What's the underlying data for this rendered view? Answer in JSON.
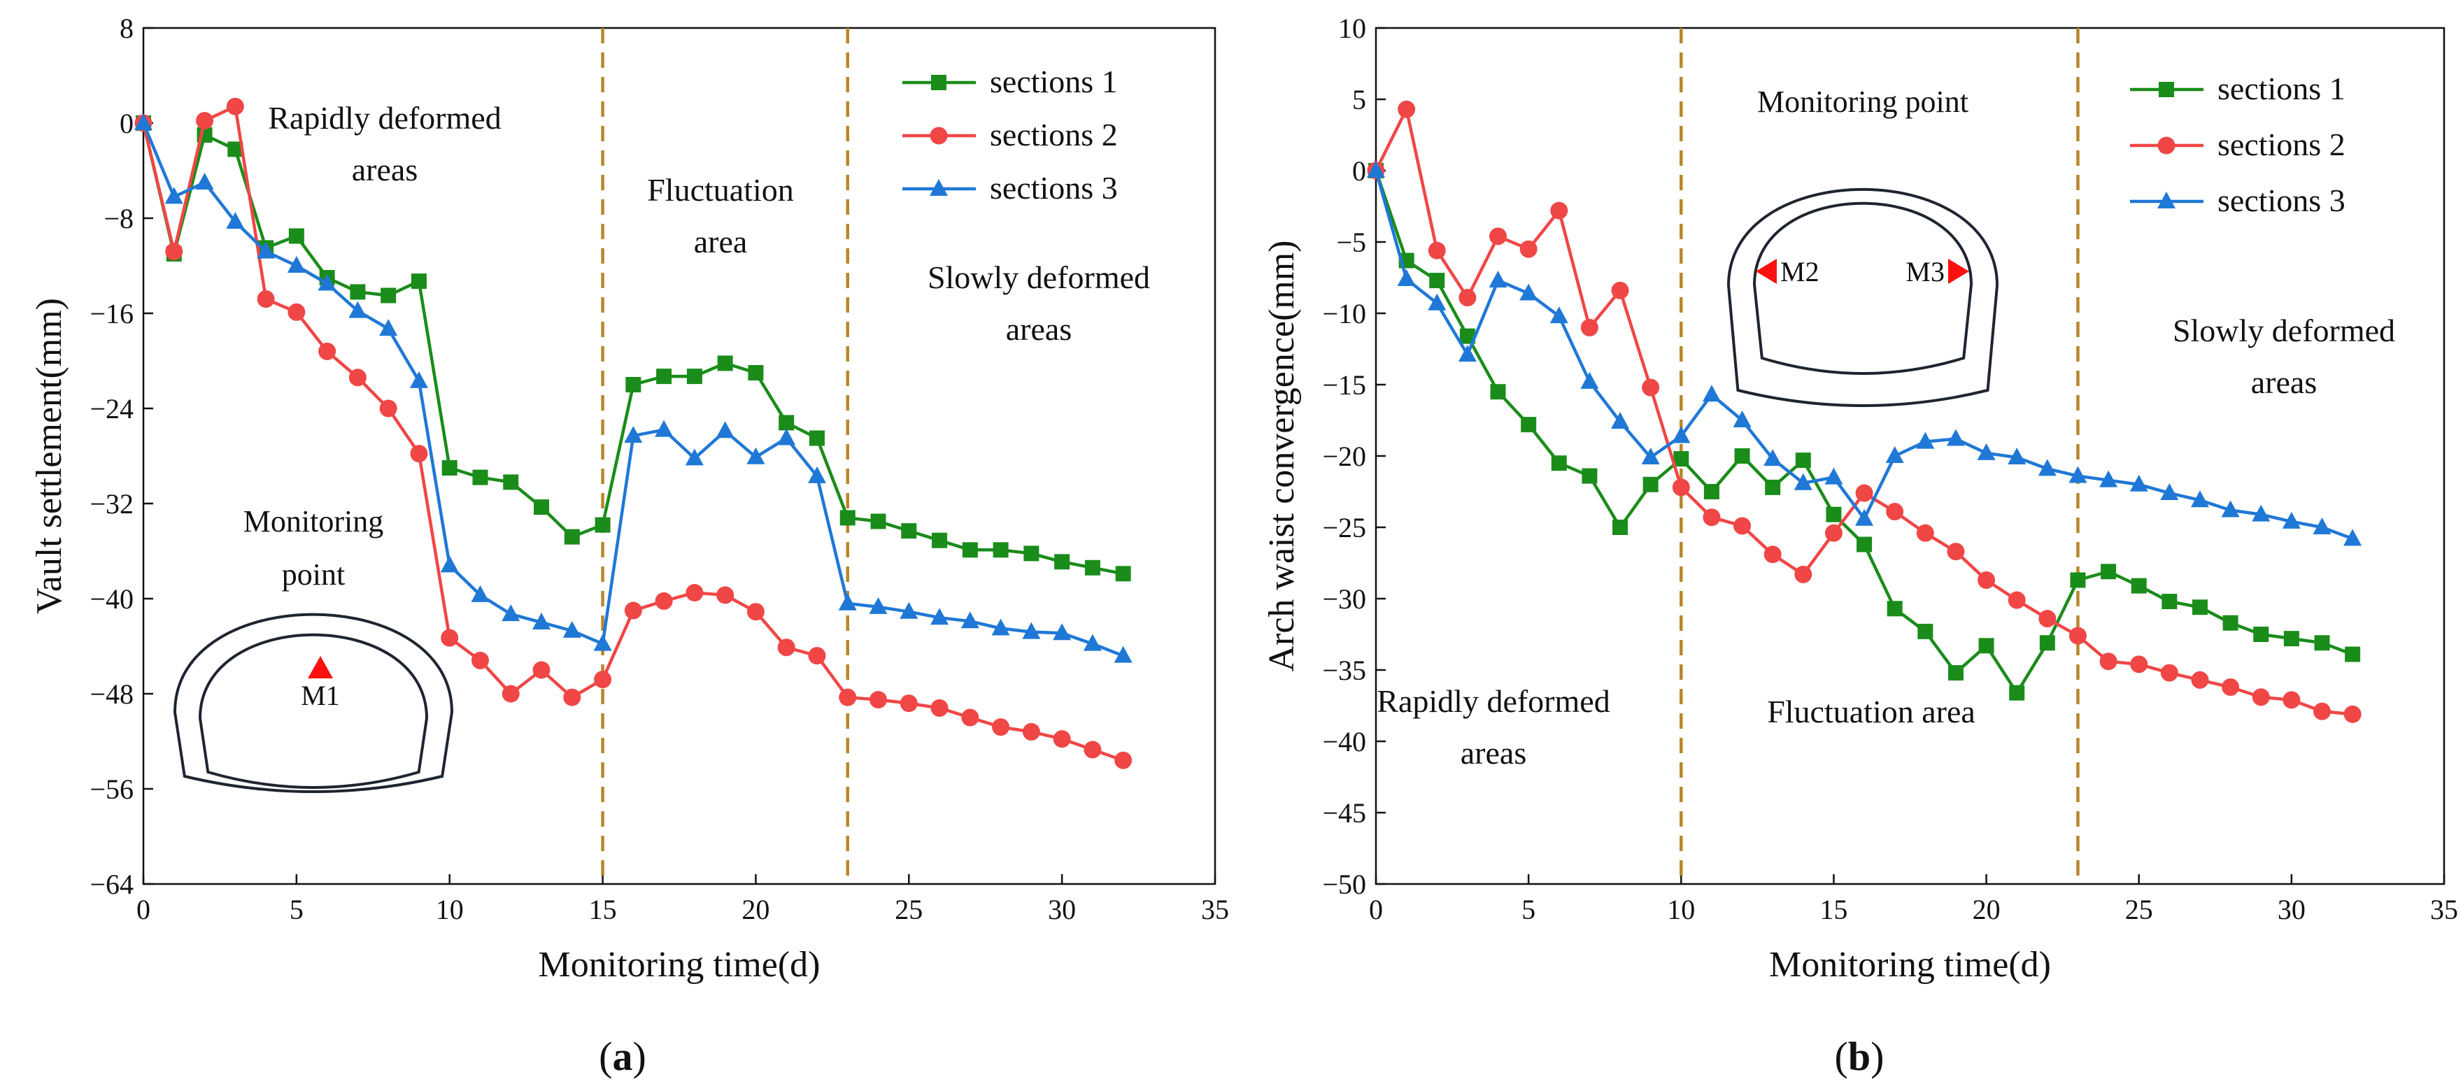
{
  "series_styles": [
    {
      "color": "#1a8c1a",
      "marker": "square"
    },
    {
      "color": "#f04646",
      "marker": "circle"
    },
    {
      "color": "#1f78d6",
      "marker": "triangle"
    }
  ],
  "chart_data": [
    {
      "type": "line",
      "panel_label": {
        "open": "(",
        "letter": "a",
        "close": ")"
      },
      "xlabel": "Monitoring time(d)",
      "ylabel": "Vault settlement(mm)",
      "xlim": [
        0,
        35
      ],
      "ylim": [
        -64,
        8
      ],
      "xticks": [
        0,
        5,
        10,
        15,
        20,
        25,
        30,
        35
      ],
      "yticks": [
        8,
        0,
        -8,
        -16,
        -24,
        -32,
        -40,
        -48,
        -56,
        -64
      ],
      "grid": false,
      "legend_position": "top-right",
      "dividers": [
        15,
        23
      ],
      "x": [
        0,
        1,
        2,
        3,
        4,
        5,
        6,
        7,
        8,
        9,
        10,
        11,
        12,
        13,
        14,
        15,
        16,
        17,
        18,
        19,
        20,
        21,
        22,
        23,
        24,
        25,
        26,
        27,
        28,
        29,
        30,
        31,
        32
      ],
      "series": [
        {
          "name": "sections 1",
          "values": [
            0,
            -11,
            -1,
            -2.2,
            -10.5,
            -9.5,
            -13,
            -14.2,
            -14.5,
            -13.3,
            -29,
            -29.8,
            -30.2,
            -32.3,
            -34.8,
            -33.8,
            -22,
            -21.3,
            -21.3,
            -20.2,
            -21,
            -25.2,
            -26.5,
            -33.2,
            -33.5,
            -34.3,
            -35.1,
            -35.9,
            -35.9,
            -36.2,
            -36.9,
            -37.4,
            -37.9
          ]
        },
        {
          "name": "sections 2",
          "values": [
            0,
            -10.8,
            0.2,
            1.4,
            -14.8,
            -15.9,
            -19.2,
            -21.4,
            -24,
            -27.8,
            -43.3,
            -45.2,
            -48,
            -46,
            -48.3,
            -46.8,
            -41,
            -40.2,
            -39.5,
            -39.7,
            -41.1,
            -44.1,
            -44.8,
            -48.3,
            -48.5,
            -48.8,
            -49.2,
            -50,
            -50.8,
            -51.2,
            -51.8,
            -52.7,
            -53.6
          ]
        },
        {
          "name": "sections 3",
          "values": [
            0,
            -6.2,
            -5,
            -8.3,
            -10.8,
            -12,
            -13.5,
            -15.8,
            -17.3,
            -21.7,
            -37.2,
            -39.7,
            -41.3,
            -42,
            -42.7,
            -43.8,
            -26.3,
            -25.8,
            -28.2,
            -25.9,
            -28.1,
            -26.5,
            -29.7,
            -40.4,
            -40.7,
            -41.1,
            -41.6,
            -41.9,
            -42.5,
            -42.8,
            -42.9,
            -43.8,
            -44.8
          ]
        }
      ],
      "annotations": [
        {
          "lines": [
            "Rapidly deformed",
            "areas"
          ]
        },
        {
          "lines": [
            "Fluctuation",
            "area"
          ]
        },
        {
          "lines": [
            "Slowly deformed",
            "areas"
          ]
        }
      ],
      "inset": {
        "lines": [
          "Monitoring",
          "point"
        ],
        "points": [
          "M1"
        ]
      }
    },
    {
      "type": "line",
      "panel_label": {
        "open": "(",
        "letter": "b",
        "close": ")"
      },
      "xlabel": "Monitoring time(d)",
      "ylabel": "Arch waist convergence(mm)",
      "xlim": [
        0,
        35
      ],
      "ylim": [
        -50,
        10
      ],
      "xticks": [
        0,
        5,
        10,
        15,
        20,
        25,
        30,
        35
      ],
      "yticks": [
        10,
        5,
        0,
        -5,
        -10,
        -15,
        -20,
        -25,
        -30,
        -35,
        -40,
        -45,
        -50
      ],
      "grid": false,
      "legend_position": "top-right",
      "dividers": [
        10,
        23
      ],
      "x": [
        0,
        1,
        2,
        3,
        4,
        5,
        6,
        7,
        8,
        9,
        10,
        11,
        12,
        13,
        14,
        15,
        16,
        17,
        18,
        19,
        20,
        21,
        22,
        23,
        24,
        25,
        26,
        27,
        28,
        29,
        30,
        31,
        32
      ],
      "series": [
        {
          "name": "sections 1",
          "values": [
            0,
            -6.3,
            -7.7,
            -11.6,
            -15.5,
            -17.8,
            -20.5,
            -21.4,
            -25,
            -22,
            -20.2,
            -22.5,
            -20,
            -22.2,
            -20.3,
            -24.1,
            -26.2,
            -30.7,
            -32.3,
            -35.2,
            -33.3,
            -36.6,
            -33.1,
            -28.7,
            -28.1,
            -29.1,
            -30.2,
            -30.6,
            -31.7,
            -32.5,
            -32.8,
            -33.1,
            -33.9
          ]
        },
        {
          "name": "sections 2",
          "values": [
            0,
            4.3,
            -5.6,
            -8.9,
            -4.6,
            -5.5,
            -2.8,
            -11,
            -8.4,
            -15.2,
            -22.2,
            -24.3,
            -24.9,
            -26.9,
            -28.3,
            -25.4,
            -22.6,
            -23.9,
            -25.4,
            -26.7,
            -28.7,
            -30.1,
            -31.4,
            -32.6,
            -34.4,
            -34.6,
            -35.2,
            -35.7,
            -36.2,
            -36.9,
            -37.1,
            -37.9,
            -38.1
          ]
        },
        {
          "name": "sections 3",
          "values": [
            0,
            -7.6,
            -9.3,
            -12.9,
            -7.7,
            -8.6,
            -10.2,
            -14.8,
            -17.6,
            -20.1,
            -18.6,
            -15.7,
            -17.5,
            -20.2,
            -21.9,
            -21.5,
            -24.4,
            -20,
            -19,
            -18.8,
            -19.8,
            -20.1,
            -20.9,
            -21.4,
            -21.7,
            -22,
            -22.6,
            -23.1,
            -23.8,
            -24.1,
            -24.6,
            -25,
            -25.8
          ]
        }
      ],
      "annotations": [
        {
          "lines": [
            "Rapidly deformed",
            "areas"
          ]
        },
        {
          "lines": [
            "Fluctuation area"
          ]
        },
        {
          "lines": [
            "Slowly deformed",
            "areas"
          ]
        }
      ],
      "inset": {
        "lines": [
          "Monitoring point"
        ],
        "points": [
          "M2",
          "M3"
        ]
      }
    }
  ]
}
